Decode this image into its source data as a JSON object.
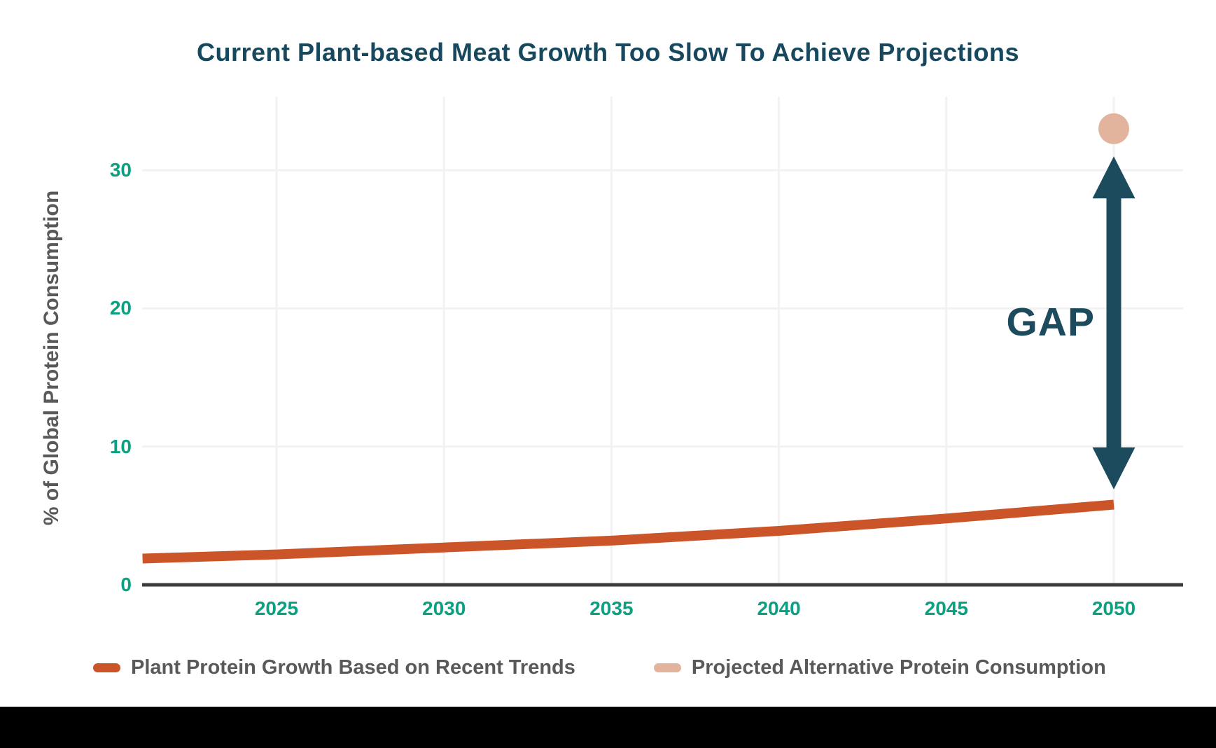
{
  "title": {
    "text": "Current Plant-based Meat Growth Too Slow To Achieve Projections",
    "color": "#17485e"
  },
  "y_axis": {
    "label": "% of Global Protein Consumption",
    "tick_color": "#0ba081",
    "label_color": "#595959"
  },
  "x_axis": {
    "tick_color": "#0ba081"
  },
  "annotation": {
    "label": "GAP",
    "color": "#1d4b5e"
  },
  "legend": {
    "items": [
      {
        "label": "Plant Protein Growth Based on Recent Trends",
        "color": "#cb5428"
      },
      {
        "label": "Projected Alternative Protein Consumption",
        "color": "#e2b49e"
      }
    ]
  },
  "colors": {
    "title_teal": "#17485e",
    "arrow_teal": "#1d4b5e",
    "tick_green": "#0ba081",
    "trend_orange": "#cb5428",
    "projection_tan": "#e2b49e",
    "axis_line": "#3d3d3d",
    "grid_line": "#f2f2f2",
    "legend_text_gray": "#595959",
    "bottom_bar_black": "#000000"
  },
  "chart_data": {
    "type": "line",
    "title": "Current Plant-based Meat Growth Too Slow To Achieve Projections",
    "xlabel": "",
    "ylabel": "% of Global Protein Consumption",
    "xlim": [
      2021,
      2052
    ],
    "ylim": [
      0,
      35
    ],
    "x_ticks": [
      2025,
      2030,
      2035,
      2040,
      2045,
      2050
    ],
    "y_ticks": [
      0,
      10,
      20,
      30
    ],
    "grid": true,
    "legend_position": "bottom",
    "series": [
      {
        "name": "Plant Protein Growth Based on Recent Trends",
        "type": "line",
        "color": "#cb5428",
        "x": [
          2021,
          2025,
          2030,
          2035,
          2040,
          2045,
          2050
        ],
        "y": [
          1.9,
          2.2,
          2.7,
          3.2,
          3.9,
          4.8,
          5.8
        ]
      },
      {
        "name": "Projected Alternative Protein Consumption",
        "type": "scatter",
        "color": "#e2b49e",
        "x": [
          2050
        ],
        "y": [
          33
        ]
      }
    ],
    "annotations": [
      {
        "text": "GAP",
        "x": 2050,
        "y_from": 6.9,
        "y_to": 31,
        "color": "#1d4b5e"
      }
    ]
  }
}
